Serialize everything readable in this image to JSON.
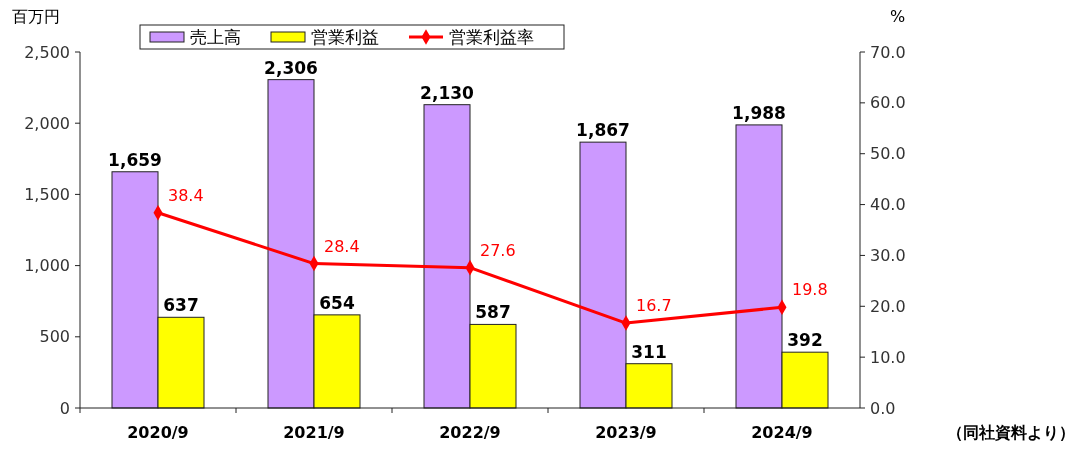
{
  "chart_data": {
    "type": "bar",
    "categories": [
      "2020/9",
      "2021/9",
      "2022/9",
      "2023/9",
      "2024/9"
    ],
    "ylabel": "百万円",
    "y2label": "%",
    "ylim": [
      0,
      2500
    ],
    "yticks": [
      {
        "value": 0,
        "label": "0"
      },
      {
        "value": 500,
        "label": "500"
      },
      {
        "value": 1000,
        "label": "1,000"
      },
      {
        "value": 1500,
        "label": "1,500"
      },
      {
        "value": 2000,
        "label": "2,000"
      },
      {
        "value": 2500,
        "label": "2,500"
      }
    ],
    "y2lim": [
      0,
      70
    ],
    "y2ticks": [
      {
        "value": 0,
        "label": "0.0"
      },
      {
        "value": 10,
        "label": "10.0"
      },
      {
        "value": 20,
        "label": "20.0"
      },
      {
        "value": 30,
        "label": "30.0"
      },
      {
        "value": 40,
        "label": "40.0"
      },
      {
        "value": 50,
        "label": "50.0"
      },
      {
        "value": 60,
        "label": "60.0"
      },
      {
        "value": 70,
        "label": "70.0"
      }
    ],
    "series": [
      {
        "name": "売上高",
        "color": "#cc99ff",
        "values": [
          1659,
          2306,
          2130,
          1867,
          1988
        ],
        "value_labels": [
          "1,659",
          "2,306",
          "2,130",
          "1,867",
          "1,988"
        ]
      },
      {
        "name": "営業利益",
        "color": "#ffff00",
        "values": [
          637,
          654,
          587,
          311,
          392
        ],
        "value_labels": [
          "637",
          "654",
          "587",
          "311",
          "392"
        ]
      },
      {
        "name": "営業利益率",
        "type": "line",
        "axis": "y2",
        "color": "#ff0000",
        "marker": "diamond",
        "values": [
          38.4,
          28.4,
          27.6,
          16.7,
          19.8
        ],
        "value_labels": [
          "38.4",
          "28.4",
          "27.6",
          "16.7",
          "19.8"
        ]
      }
    ],
    "legend": "top",
    "grid": false,
    "annotations": [
      "（同社資料より）"
    ]
  }
}
